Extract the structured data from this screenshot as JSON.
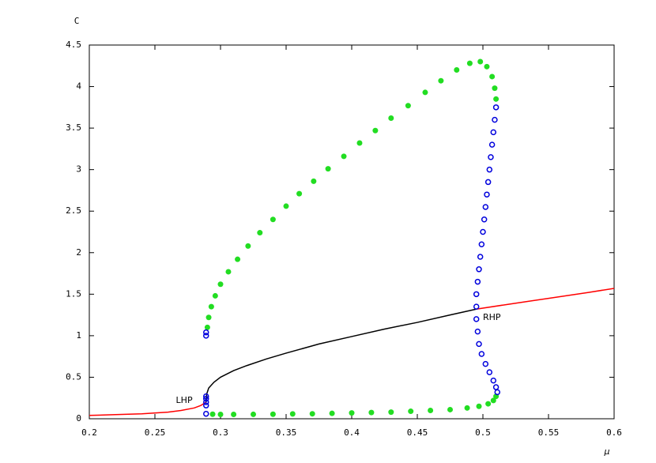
{
  "chart_data": {
    "type": "line",
    "xlabel": "μ",
    "ylabel": "C",
    "xlim": [
      0.2,
      0.6
    ],
    "ylim": [
      0,
      4.5
    ],
    "xticks": [
      0.2,
      0.25,
      0.3,
      0.35,
      0.4,
      0.45,
      0.5,
      0.55,
      0.6
    ],
    "yticks": [
      0,
      0.5,
      1,
      1.5,
      2,
      2.5,
      3,
      3.5,
      4,
      4.5
    ],
    "annotations": [
      {
        "text": "LHP",
        "x": 0.266,
        "y": 0.22
      },
      {
        "text": "RHP",
        "x": 0.5,
        "y": 1.22
      }
    ],
    "series": [
      {
        "style": "line",
        "color": "#ff0000",
        "x": [
          0.2,
          0.22,
          0.24,
          0.26,
          0.27,
          0.28,
          0.285,
          0.289
        ],
        "values": [
          0.04,
          0.05,
          0.06,
          0.08,
          0.1,
          0.13,
          0.16,
          0.2
        ]
      },
      {
        "style": "line",
        "color": "#ff0000",
        "x": [
          0.495,
          0.52,
          0.55,
          0.58,
          0.6
        ],
        "values": [
          1.32,
          1.38,
          1.45,
          1.52,
          1.57
        ]
      },
      {
        "style": "line",
        "color": "#000000",
        "x": [
          0.289,
          0.2895,
          0.291,
          0.295,
          0.3,
          0.31,
          0.32,
          0.335,
          0.35,
          0.375,
          0.4,
          0.425,
          0.45,
          0.475,
          0.495
        ],
        "values": [
          0.2,
          0.3,
          0.37,
          0.44,
          0.5,
          0.58,
          0.64,
          0.72,
          0.79,
          0.9,
          0.99,
          1.08,
          1.16,
          1.25,
          1.32
        ]
      },
      {
        "style": "dot",
        "color": "#22dd22",
        "x": [
          0.29,
          0.291,
          0.293,
          0.296,
          0.3,
          0.306,
          0.313,
          0.321,
          0.33,
          0.34,
          0.35,
          0.36,
          0.371,
          0.382,
          0.394,
          0.406,
          0.418,
          0.43,
          0.443,
          0.456,
          0.468,
          0.48,
          0.49,
          0.498,
          0.503,
          0.507,
          0.509,
          0.51
        ],
        "values": [
          1.1,
          1.22,
          1.35,
          1.48,
          1.62,
          1.77,
          1.92,
          2.08,
          2.24,
          2.4,
          2.56,
          2.71,
          2.86,
          3.01,
          3.16,
          3.32,
          3.47,
          3.62,
          3.77,
          3.93,
          4.07,
          4.2,
          4.28,
          4.3,
          4.24,
          4.12,
          3.98,
          3.85
        ]
      },
      {
        "style": "dot",
        "color": "#22dd22",
        "x": [
          0.51,
          0.508,
          0.504,
          0.497,
          0.488,
          0.475,
          0.46,
          0.445,
          0.43,
          0.415,
          0.4,
          0.385,
          0.37,
          0.355,
          0.34,
          0.325,
          0.31,
          0.3,
          0.294
        ],
        "values": [
          0.27,
          0.22,
          0.18,
          0.15,
          0.13,
          0.11,
          0.1,
          0.09,
          0.08,
          0.075,
          0.07,
          0.065,
          0.06,
          0.058,
          0.055,
          0.053,
          0.052,
          0.052,
          0.055
        ]
      },
      {
        "style": "circle",
        "color": "#0000dd",
        "x": [
          0.51,
          0.509,
          0.508,
          0.507,
          0.506,
          0.505,
          0.504,
          0.503,
          0.502,
          0.501,
          0.5,
          0.499,
          0.498,
          0.497,
          0.496,
          0.495,
          0.495,
          0.495,
          0.496,
          0.497,
          0.499,
          0.502,
          0.505,
          0.508,
          0.51,
          0.511
        ],
        "values": [
          3.75,
          3.6,
          3.45,
          3.3,
          3.15,
          3.0,
          2.85,
          2.7,
          2.55,
          2.4,
          2.25,
          2.1,
          1.95,
          1.8,
          1.65,
          1.5,
          1.35,
          1.2,
          1.05,
          0.9,
          0.78,
          0.66,
          0.56,
          0.46,
          0.38,
          0.32
        ]
      },
      {
        "style": "circle",
        "color": "#0000dd",
        "x": [
          0.289,
          0.289,
          0.289,
          0.289,
          0.289,
          0.289,
          0.289
        ],
        "values": [
          1.0,
          1.04,
          0.06,
          0.16,
          0.2,
          0.24,
          0.27
        ]
      }
    ]
  }
}
